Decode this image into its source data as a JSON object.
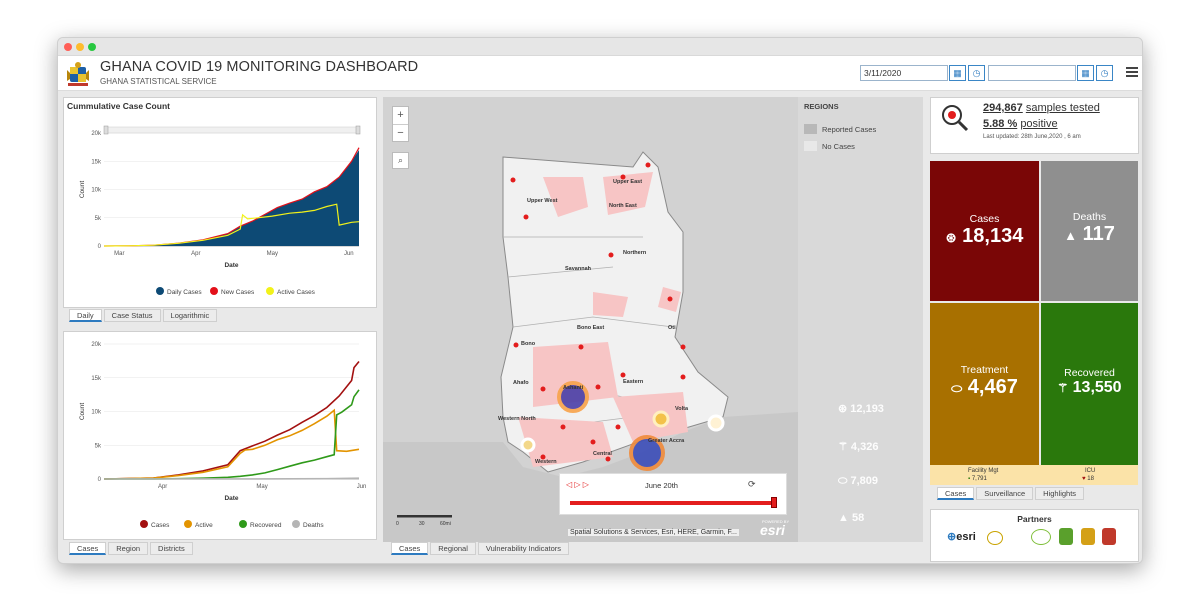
{
  "header": {
    "title": "GHANA COVID 19 MONITORING DASHBOARD",
    "subtitle": "GHANA STATISTICAL SERVICE",
    "date_from": "3/11/2020",
    "date_to": ""
  },
  "cumulative_panel": {
    "title": "Cummulative Case Count",
    "tabs": [
      "Daily",
      "Case Status",
      "Logarithmic"
    ]
  },
  "status_panel": {
    "tabs": [
      "Cases",
      "Region",
      "Districts"
    ]
  },
  "map_panel": {
    "tabs": [
      "Cases",
      "Regional",
      "Vulnerability Indicators"
    ],
    "zoom_in": "+",
    "zoom_out": "−",
    "legend_title": "REGIONS",
    "legend_items": [
      "Reported Cases",
      "No Cases"
    ],
    "region_labels": [
      {
        "name": "Upper West"
      },
      {
        "name": "Upper East"
      },
      {
        "name": "North East"
      },
      {
        "name": "Northern"
      },
      {
        "name": "Savannah"
      },
      {
        "name": "Bono East"
      },
      {
        "name": "Oti"
      },
      {
        "name": "Bono"
      },
      {
        "name": "Ahafo"
      },
      {
        "name": "Ashanti"
      },
      {
        "name": "Eastern"
      },
      {
        "name": "Volta"
      },
      {
        "name": "Western North"
      },
      {
        "name": "Western"
      },
      {
        "name": "Central"
      },
      {
        "name": "Greater Accra"
      }
    ],
    "map_stats": [
      "12,193",
      "4,326",
      "7,809",
      "58"
    ],
    "time_label": "June 20th",
    "scale_labels": [
      "0",
      "30",
      "60mi"
    ],
    "attribution": "Spatial Solutions & Services, Esri, HERE, Garmin, F...",
    "esri_badge": "esri",
    "powered_by": "POWERED BY"
  },
  "tests": {
    "samples": "294,867",
    "samples_label": "samples tested",
    "positive": "5.88 %",
    "positive_label": "positive",
    "updated": "Last updated: 28th June,2020 , 6 am"
  },
  "kpis": {
    "cases_label": "Cases",
    "cases_value": "18,134",
    "deaths_label": "Deaths",
    "deaths_value": "117",
    "treatment_label": "Treatment",
    "treatment_value": "4,467",
    "recovered_label": "Recovered",
    "recovered_value": "13,550",
    "facility_label": "Facility Mgt",
    "facility_value": "7,791",
    "icu_label": "ICU",
    "icu_value": "18"
  },
  "kpi_colors": {
    "cases": "#7a0606",
    "deaths": "#8f8f8f",
    "treatment": "#a87000",
    "recovered": "#2a780c",
    "strip": "#fbe3a8"
  },
  "kpi_tabs": [
    "Cases",
    "Surveillance",
    "Highlights"
  ],
  "partners": {
    "title": "Partners",
    "esri": "esri"
  },
  "chart_data": [
    {
      "type": "area",
      "title": "Cummulative Case Count",
      "xlabel": "Date",
      "ylabel": "Count",
      "x_ticks": [
        "Mar",
        "Apr",
        "May",
        "Jun"
      ],
      "y_ticks": [
        "0",
        "5k",
        "10k",
        "15k",
        "20k"
      ],
      "ylim": [
        0,
        20000
      ],
      "x_range_days": [
        0,
        103
      ],
      "legend": "bottom-center",
      "series": [
        {
          "name": "Daily Cases",
          "color": "#0d4a75",
          "points": [
            [
              0,
              0
            ],
            [
              10,
              30
            ],
            [
              20,
              150
            ],
            [
              30,
              500
            ],
            [
              40,
              1100
            ],
            [
              50,
              2200
            ],
            [
              55,
              3500
            ],
            [
              60,
              4400
            ],
            [
              65,
              5600
            ],
            [
              70,
              6800
            ],
            [
              75,
              7600
            ],
            [
              80,
              8300
            ],
            [
              85,
              9600
            ],
            [
              90,
              10500
            ],
            [
              95,
              12200
            ],
            [
              100,
              15000
            ],
            [
              103,
              17000
            ]
          ]
        },
        {
          "name": "New Cases",
          "color": "#e3101a",
          "points": [
            [
              0,
              0
            ],
            [
              10,
              30
            ],
            [
              20,
              150
            ],
            [
              30,
              500
            ],
            [
              40,
              1100
            ],
            [
              50,
              2200
            ],
            [
              55,
              3500
            ],
            [
              60,
              4400
            ],
            [
              65,
              5600
            ],
            [
              70,
              6800
            ],
            [
              75,
              7600
            ],
            [
              80,
              8300
            ],
            [
              85,
              9600
            ],
            [
              90,
              10500
            ],
            [
              95,
              12200
            ],
            [
              100,
              15000
            ],
            [
              103,
              17400
            ]
          ]
        },
        {
          "name": "Active Cases",
          "color": "#f2f21a",
          "points": [
            [
              0,
              0
            ],
            [
              10,
              30
            ],
            [
              20,
              140
            ],
            [
              30,
              480
            ],
            [
              40,
              1000
            ],
            [
              50,
              1900
            ],
            [
              55,
              3000
            ],
            [
              56,
              5500
            ],
            [
              58,
              4800
            ],
            [
              62,
              5000
            ],
            [
              68,
              5300
            ],
            [
              75,
              5800
            ],
            [
              80,
              6000
            ],
            [
              85,
              6300
            ],
            [
              90,
              7000
            ],
            [
              94,
              7400
            ],
            [
              95,
              3700
            ],
            [
              100,
              4200
            ],
            [
              103,
              4300
            ]
          ]
        }
      ]
    },
    {
      "type": "line",
      "xlabel": "Date",
      "ylabel": "Count",
      "x_ticks": [
        "Apr",
        "May",
        "Jun"
      ],
      "y_ticks": [
        "0",
        "5k",
        "10k",
        "15k",
        "20k"
      ],
      "ylim": [
        0,
        20000
      ],
      "x_range_days": [
        0,
        103
      ],
      "legend": "bottom-center",
      "series": [
        {
          "name": "Cases",
          "color": "#a31010",
          "points": [
            [
              0,
              0
            ],
            [
              20,
              150
            ],
            [
              30,
              600
            ],
            [
              40,
              1200
            ],
            [
              50,
              2100
            ],
            [
              55,
              4200
            ],
            [
              60,
              4900
            ],
            [
              65,
              5600
            ],
            [
              70,
              6500
            ],
            [
              75,
              7300
            ],
            [
              80,
              8400
            ],
            [
              85,
              9400
            ],
            [
              90,
              10600
            ],
            [
              95,
              12300
            ],
            [
              100,
              14600
            ],
            [
              101,
              16500
            ],
            [
              103,
              17400
            ]
          ]
        },
        {
          "name": "Active",
          "color": "#e39400",
          "points": [
            [
              0,
              0
            ],
            [
              20,
              130
            ],
            [
              30,
              500
            ],
            [
              40,
              1000
            ],
            [
              50,
              1800
            ],
            [
              55,
              3800
            ],
            [
              57,
              4300
            ],
            [
              60,
              4400
            ],
            [
              65,
              5000
            ],
            [
              70,
              5800
            ],
            [
              75,
              6400
            ],
            [
              80,
              7200
            ],
            [
              85,
              8200
            ],
            [
              90,
              9300
            ],
            [
              93,
              10200
            ],
            [
              94,
              4200
            ],
            [
              98,
              4100
            ],
            [
              103,
              4400
            ]
          ]
        },
        {
          "name": "Recovered",
          "color": "#2f9a1a",
          "points": [
            [
              0,
              0
            ],
            [
              20,
              10
            ],
            [
              30,
              50
            ],
            [
              40,
              120
            ],
            [
              50,
              250
            ],
            [
              55,
              400
            ],
            [
              60,
              600
            ],
            [
              65,
              900
            ],
            [
              70,
              1400
            ],
            [
              75,
              1900
            ],
            [
              80,
              2400
            ],
            [
              85,
              2800
            ],
            [
              90,
              3300
            ],
            [
              93,
              3600
            ],
            [
              94,
              9500
            ],
            [
              96,
              9900
            ],
            [
              100,
              11000
            ],
            [
              101,
              12200
            ],
            [
              103,
              13200
            ]
          ]
        },
        {
          "name": "Deaths",
          "color": "#b5b5b5",
          "points": [
            [
              0,
              0
            ],
            [
              30,
              8
            ],
            [
              60,
              20
            ],
            [
              90,
              50
            ],
            [
              103,
              117
            ]
          ]
        }
      ]
    }
  ]
}
